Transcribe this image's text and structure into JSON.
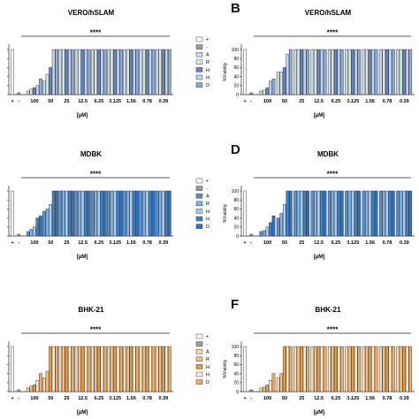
{
  "panels": [
    {
      "letter": "",
      "title": "VERO/hSLAM",
      "show_ylabel": false,
      "show_yticks": false
    },
    {
      "letter": "B",
      "title": "VERO/hSLAM",
      "show_ylabel": true,
      "show_yticks": true
    },
    {
      "letter": "",
      "title": "MDBK",
      "show_ylabel": false,
      "show_yticks": false
    },
    {
      "letter": "D",
      "title": "MDBK",
      "show_ylabel": true,
      "show_yticks": true
    },
    {
      "letter": "",
      "title": "BHK-21",
      "show_ylabel": false,
      "show_yticks": false
    },
    {
      "letter": "F",
      "title": "BHK-21",
      "show_ylabel": true,
      "show_yticks": true
    }
  ],
  "chart_data": [
    {
      "type": "bar",
      "panel": "A",
      "title": "VERO/hSLAM",
      "xlabel": "[µM]",
      "ylabel": "",
      "ylim": [
        0,
        110
      ],
      "significance": "****",
      "legend_position": "right",
      "controls": {
        "labels": [
          "+",
          "-"
        ],
        "values": [
          100,
          4
        ]
      },
      "categories": [
        "100",
        "50",
        "25",
        "12.5",
        "6.25",
        "3.125",
        "1.56",
        "0.78",
        "0.39"
      ],
      "series": [
        {
          "name": "AR-23",
          "color": "#c9d7ea",
          "values": [
            8,
            30,
            100,
            100,
            100,
            100,
            100,
            100,
            100
          ]
        },
        {
          "name": "RV-23",
          "color": "#d4ecd6",
          "values": [
            12,
            45,
            100,
            100,
            100,
            100,
            100,
            100,
            100
          ]
        },
        {
          "name": "Hylin-a1",
          "color": "#6a7fc4",
          "values": [
            15,
            60,
            100,
            100,
            100,
            100,
            100,
            100,
            100
          ]
        },
        {
          "name": "Hylaseptin-P1",
          "color": "#bcd4ee",
          "values": [
            20,
            100,
            100,
            100,
            100,
            100,
            100,
            100,
            100
          ]
        },
        {
          "name": "Deserticolin-1",
          "color": "#8eaad8",
          "values": [
            35,
            100,
            100,
            100,
            100,
            100,
            100,
            100,
            100
          ]
        }
      ]
    },
    {
      "type": "bar",
      "panel": "B",
      "title": "VERO/hSLAM",
      "xlabel": "[µM]",
      "ylabel": "%Viability",
      "ylim": [
        0,
        110
      ],
      "yticks": [
        0,
        20,
        40,
        60,
        80,
        100
      ],
      "significance": "****",
      "controls": {
        "labels": [
          "+",
          "-"
        ],
        "values": [
          100,
          4
        ]
      },
      "categories": [
        "100",
        "50",
        "25",
        "12.5",
        "6.25",
        "3.125",
        "1.56",
        "0.78",
        "0.39"
      ],
      "series": [
        {
          "name": "AR-23",
          "color": "#c9d7ea",
          "values": [
            8,
            50,
            100,
            100,
            100,
            100,
            100,
            100,
            100
          ]
        },
        {
          "name": "RV-23",
          "color": "#d4ecd6",
          "values": [
            10,
            50,
            100,
            100,
            100,
            100,
            100,
            100,
            100
          ]
        },
        {
          "name": "Hylin-a1",
          "color": "#6a7fc4",
          "values": [
            15,
            60,
            100,
            100,
            100,
            100,
            100,
            100,
            100
          ]
        },
        {
          "name": "Hylaseptin-P1",
          "color": "#bcd4ee",
          "values": [
            30,
            90,
            100,
            100,
            100,
            100,
            100,
            100,
            100
          ]
        },
        {
          "name": "Deserticolin-1",
          "color": "#8eaad8",
          "values": [
            35,
            100,
            100,
            100,
            100,
            100,
            100,
            100,
            100
          ]
        }
      ]
    },
    {
      "type": "bar",
      "panel": "C",
      "title": "MDBK",
      "xlabel": "[µM]",
      "ylabel": "",
      "ylim": [
        0,
        110
      ],
      "significance": "****",
      "legend_position": "right",
      "controls": {
        "labels": [
          "+",
          "-"
        ],
        "values": [
          100,
          4
        ]
      },
      "categories": [
        "100",
        "50",
        "25",
        "12.5",
        "6.25",
        "3.125",
        "1.56",
        "0.78",
        "0.39"
      ],
      "series": [
        {
          "name": "AR-23",
          "color": "#5a90cf",
          "values": [
            10,
            55,
            100,
            100,
            100,
            100,
            100,
            100,
            100
          ]
        },
        {
          "name": "RV-23",
          "color": "#7fb2e5",
          "values": [
            15,
            60,
            100,
            100,
            100,
            100,
            100,
            100,
            100
          ]
        },
        {
          "name": "Hylin-a1",
          "color": "#a9cdf0",
          "values": [
            20,
            70,
            100,
            100,
            100,
            100,
            100,
            100,
            100
          ]
        },
        {
          "name": "Hylaseptin-P1",
          "color": "#3f7fc6",
          "values": [
            40,
            100,
            100,
            100,
            100,
            100,
            100,
            100,
            100
          ]
        },
        {
          "name": "Deserticolin-1",
          "color": "#2f72c4",
          "values": [
            45,
            100,
            100,
            100,
            100,
            100,
            100,
            100,
            100
          ]
        }
      ]
    },
    {
      "type": "bar",
      "panel": "D",
      "title": "MDBK",
      "xlabel": "[µM]",
      "ylabel": "%Viability",
      "ylim": [
        0,
        110
      ],
      "yticks": [
        0,
        20,
        40,
        60,
        80,
        100
      ],
      "significance": "****",
      "controls": {
        "labels": [
          "+",
          "-"
        ],
        "values": [
          100,
          4
        ]
      },
      "categories": [
        "100",
        "50",
        "25",
        "12.5",
        "6.25",
        "3.125",
        "1.56",
        "0.78",
        "0.39"
      ],
      "series": [
        {
          "name": "AR-23",
          "color": "#5a90cf",
          "values": [
            10,
            40,
            100,
            100,
            100,
            100,
            100,
            100,
            100
          ]
        },
        {
          "name": "RV-23",
          "color": "#7fb2e5",
          "values": [
            12,
            50,
            100,
            100,
            100,
            100,
            100,
            100,
            100
          ]
        },
        {
          "name": "Hylin-a1",
          "color": "#a9cdf0",
          "values": [
            20,
            70,
            100,
            100,
            100,
            100,
            100,
            100,
            100
          ]
        },
        {
          "name": "Hylaseptin-P1",
          "color": "#3f7fc6",
          "values": [
            30,
            100,
            100,
            100,
            100,
            100,
            100,
            100,
            100
          ]
        },
        {
          "name": "Deserticolin-1",
          "color": "#2f72c4",
          "values": [
            45,
            100,
            100,
            100,
            100,
            100,
            100,
            100,
            100
          ]
        }
      ]
    },
    {
      "type": "bar",
      "panel": "E",
      "title": "BHK-21",
      "xlabel": "[µM]",
      "ylabel": "",
      "ylim": [
        0,
        110
      ],
      "significance": "****",
      "legend_position": "right",
      "controls": {
        "labels": [
          "+",
          "-"
        ],
        "values": [
          100,
          4
        ]
      },
      "categories": [
        "100",
        "50",
        "25",
        "12.5",
        "6.25",
        "3.125",
        "1.56",
        "0.78",
        "0.39"
      ],
      "series": [
        {
          "name": "AR-23",
          "color": "#f6d7b3",
          "values": [
            8,
            30,
            100,
            100,
            100,
            100,
            100,
            100,
            100
          ]
        },
        {
          "name": "RV-23",
          "color": "#f1c089",
          "values": [
            12,
            45,
            100,
            100,
            100,
            100,
            100,
            100,
            100
          ]
        },
        {
          "name": "Hylin-a1",
          "color": "#e79b44",
          "values": [
            15,
            100,
            100,
            100,
            100,
            100,
            100,
            100,
            100
          ]
        },
        {
          "name": "Hylaseptin-P1",
          "color": "#fbecd6",
          "values": [
            25,
            100,
            100,
            100,
            100,
            100,
            100,
            100,
            100
          ]
        },
        {
          "name": "Deserticolin-1",
          "color": "#eeae63",
          "values": [
            40,
            100,
            100,
            100,
            100,
            100,
            100,
            100,
            100
          ]
        }
      ]
    },
    {
      "type": "bar",
      "panel": "F",
      "title": "BHK-21",
      "xlabel": "[µM]",
      "ylabel": "%Viability",
      "ylim": [
        0,
        110
      ],
      "yticks": [
        0,
        20,
        40,
        60,
        80,
        100
      ],
      "significance": "****",
      "controls": {
        "labels": [
          "+",
          "-"
        ],
        "values": [
          100,
          4
        ]
      },
      "categories": [
        "100",
        "50",
        "25",
        "12.5",
        "6.25",
        "3.125",
        "1.56",
        "0.78",
        "0.39"
      ],
      "series": [
        {
          "name": "AR-23",
          "color": "#f6d7b3",
          "values": [
            8,
            30,
            100,
            100,
            100,
            100,
            100,
            100,
            100
          ]
        },
        {
          "name": "RV-23",
          "color": "#f1c089",
          "values": [
            10,
            40,
            100,
            100,
            100,
            100,
            100,
            100,
            100
          ]
        },
        {
          "name": "Hylin-a1",
          "color": "#e79b44",
          "values": [
            15,
            100,
            100,
            100,
            100,
            100,
            100,
            100,
            100
          ]
        },
        {
          "name": "Hylaseptin-P1",
          "color": "#fbecd6",
          "values": [
            25,
            100,
            100,
            100,
            100,
            100,
            100,
            100,
            100
          ]
        },
        {
          "name": "Deserticolin-1",
          "color": "#eeae63",
          "values": [
            40,
            100,
            100,
            100,
            100,
            100,
            100,
            100,
            100
          ]
        }
      ]
    }
  ],
  "legend_controls": [
    {
      "label": "+",
      "color": "#ffffff"
    },
    {
      "label": "-",
      "color": "#9a9a9a"
    }
  ]
}
